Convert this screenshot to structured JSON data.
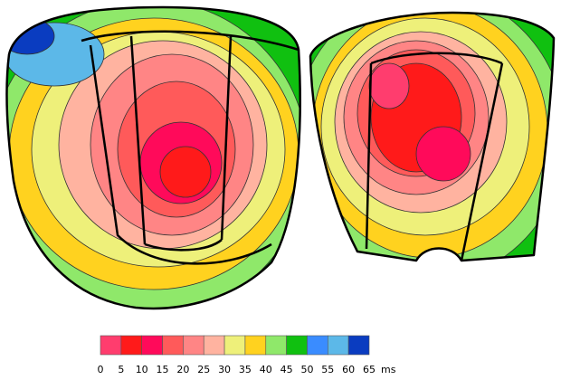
{
  "colorbar": {
    "ticks": [
      0,
      5,
      10,
      15,
      20,
      25,
      30,
      35,
      40,
      45,
      50,
      55,
      60,
      65
    ],
    "unit": "ms",
    "colors": [
      "#ff3d6e",
      "#ff1a1a",
      "#ff0a5a",
      "#ff5a5a",
      "#ff8585",
      "#ffb3a0",
      "#eef07a",
      "#ffd21f",
      "#8fe86a",
      "#10c010",
      "#3a8cff",
      "#5cb8e8",
      "#0a3cc0"
    ]
  }
}
